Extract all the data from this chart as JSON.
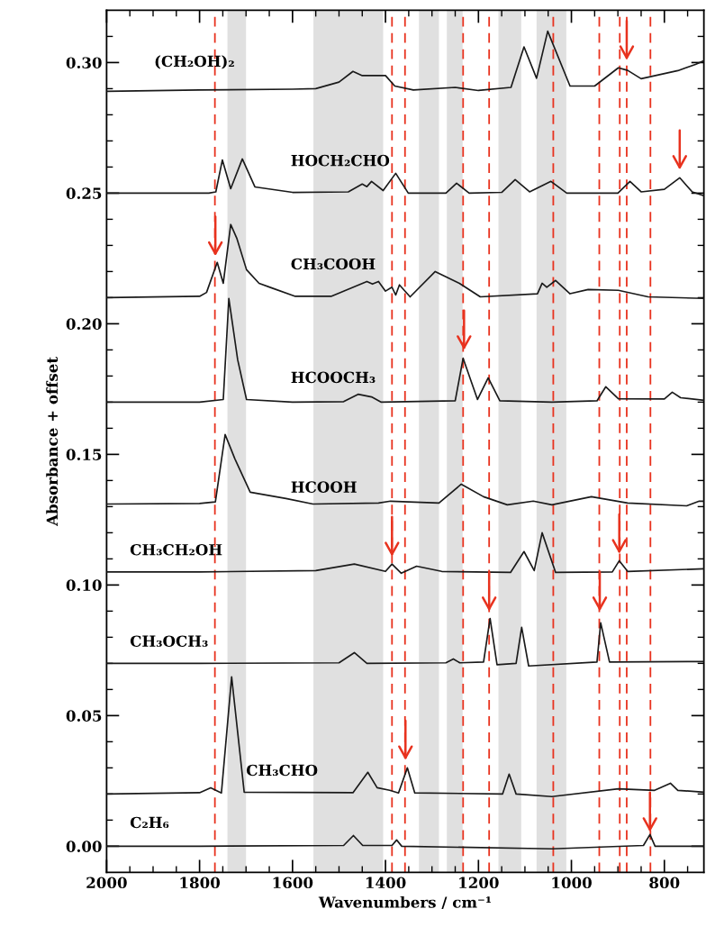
{
  "chart_data": {
    "type": "line",
    "xlabel": "Wavenumbers / cm⁻¹",
    "ylabel": "Absorbance + offset",
    "xlim": [
      2000,
      715
    ],
    "ylim": [
      -0.01,
      0.32
    ],
    "xticks": [
      2000,
      1800,
      1600,
      1400,
      1200,
      1000,
      800,
      {
        "value": 1950,
        "label": null
      },
      {
        "value": 1900,
        "label": null
      },
      {
        "value": 1850,
        "label": null
      },
      {
        "value": 1750,
        "label": null
      },
      {
        "value": 1700,
        "label": null
      },
      {
        "value": 1650,
        "label": null
      },
      {
        "value": 1550,
        "label": null
      },
      {
        "value": 1500,
        "label": null
      },
      {
        "value": 1450,
        "label": null
      },
      {
        "value": 1350,
        "label": null
      },
      {
        "value": 1300,
        "label": null
      },
      {
        "value": 1250,
        "label": null
      },
      {
        "value": 1150,
        "label": null
      },
      {
        "value": 1100,
        "label": null
      },
      {
        "value": 1050,
        "label": null
      },
      {
        "value": 950,
        "label": null
      },
      {
        "value": 900,
        "label": null
      },
      {
        "value": 850,
        "label": null
      },
      {
        "value": 750,
        "label": null
      }
    ],
    "yticks": [
      {
        "value": 0.0,
        "label": "0.00"
      },
      0.05,
      {
        "value": 0.1,
        "label": "0.10"
      },
      0.15,
      {
        "value": 0.2,
        "label": "0.20"
      },
      0.25,
      {
        "value": 0.3,
        "label": "0.30"
      },
      {
        "value": 0.01,
        "label": null
      },
      {
        "value": 0.02,
        "label": null
      },
      {
        "value": 0.03,
        "label": null
      },
      {
        "value": 0.04,
        "label": null
      },
      {
        "value": 0.06,
        "label": null
      },
      {
        "value": 0.07,
        "label": null
      },
      {
        "value": 0.08,
        "label": null
      },
      {
        "value": 0.09,
        "label": null
      },
      {
        "value": 0.11,
        "label": null
      },
      {
        "value": 0.12,
        "label": null
      },
      {
        "value": 0.13,
        "label": null
      },
      {
        "value": 0.14,
        "label": null
      },
      {
        "value": 0.16,
        "label": null
      },
      {
        "value": 0.17,
        "label": null
      },
      {
        "value": 0.18,
        "label": null
      },
      {
        "value": 0.19,
        "label": null
      },
      {
        "value": 0.21,
        "label": null
      },
      {
        "value": 0.22,
        "label": null
      },
      {
        "value": 0.23,
        "label": null
      },
      {
        "value": 0.24,
        "label": null
      },
      {
        "value": 0.26,
        "label": null
      },
      {
        "value": 0.27,
        "label": null
      },
      {
        "value": 0.28,
        "label": null
      },
      {
        "value": 0.29,
        "label": null
      },
      {
        "value": 0.31,
        "label": null
      }
    ],
    "grid": false,
    "legend": false,
    "marker": "none",
    "line_style": "solid",
    "bands": [
      {
        "axis": "x",
        "from": 1740,
        "to": 1700,
        "color": "#e0e0e0"
      },
      {
        "axis": "x",
        "from": 1555,
        "to": 1405,
        "color": "#e0e0e0"
      },
      {
        "axis": "x",
        "from": 1328,
        "to": 1285,
        "color": "#e0e0e0"
      },
      {
        "axis": "x",
        "from": 1268,
        "to": 1234,
        "color": "#e0e0e0"
      },
      {
        "axis": "x",
        "from": 1157,
        "to": 1108,
        "color": "#e0e0e0"
      },
      {
        "axis": "x",
        "from": 1075,
        "to": 1011,
        "color": "#e0e0e0"
      }
    ],
    "ref_lines": [
      {
        "axis": "x",
        "value": 1767,
        "color": "#e8321e",
        "line_style": "dashed"
      },
      {
        "axis": "x",
        "value": 1386,
        "color": "#e8321e",
        "line_style": "dashed"
      },
      {
        "axis": "x",
        "value": 1358,
        "color": "#e8321e",
        "line_style": "dashed"
      },
      {
        "axis": "x",
        "value": 1233,
        "color": "#e8321e",
        "line_style": "dashed"
      },
      {
        "axis": "x",
        "value": 1177,
        "color": "#e8321e",
        "line_style": "dashed"
      },
      {
        "axis": "x",
        "value": 1039,
        "color": "#e8321e",
        "line_style": "dashed"
      },
      {
        "axis": "x",
        "value": 940,
        "color": "#e8321e",
        "line_style": "dashed"
      },
      {
        "axis": "x",
        "value": 896,
        "color": "#e8321e",
        "line_style": "dashed"
      },
      {
        "axis": "x",
        "value": 881,
        "color": "#e8321e",
        "line_style": "dashed"
      },
      {
        "axis": "x",
        "value": 830,
        "color": "#e8321e",
        "line_style": "dashed"
      }
    ],
    "series": [
      {
        "name": "(CH₂OH)₂",
        "color": "#1a1a1a",
        "x": [
          2000,
          1800,
          1600,
          1550,
          1500,
          1470,
          1450,
          1400,
          1380,
          1340,
          1250,
          1200,
          1130,
          1102,
          1075,
          1051,
          1003,
          950,
          899,
          879,
          850,
          771,
          733,
          715
        ],
        "values": [
          0.289,
          0.2895,
          0.2898,
          0.29,
          0.2925,
          0.2966,
          0.295,
          0.295,
          0.291,
          0.2895,
          0.2905,
          0.2893,
          0.2905,
          0.306,
          0.294,
          0.312,
          0.291,
          0.291,
          0.298,
          0.297,
          0.2938,
          0.2969,
          0.2993,
          0.3007
        ]
      },
      {
        "name": "HOCH₂CHO",
        "color": "#1a1a1a",
        "x": [
          2000,
          1780,
          1765,
          1751,
          1733,
          1708,
          1681,
          1600,
          1480,
          1450,
          1440,
          1430,
          1405,
          1378,
          1351,
          1270,
          1247,
          1220,
          1150,
          1121,
          1090,
          1044,
          1010,
          900,
          874,
          850,
          800,
          767,
          740,
          715
        ],
        "values": [
          0.25,
          0.25,
          0.2505,
          0.2627,
          0.2517,
          0.2631,
          0.2524,
          0.2503,
          0.2505,
          0.2535,
          0.2525,
          0.2545,
          0.251,
          0.2576,
          0.25,
          0.25,
          0.2538,
          0.25,
          0.2503,
          0.2552,
          0.2505,
          0.2545,
          0.25,
          0.25,
          0.2545,
          0.2505,
          0.2515,
          0.2559,
          0.2505,
          0.249
        ]
      },
      {
        "name": "CH₃COOH",
        "color": "#1a1a1a",
        "x": [
          2000,
          1800,
          1785,
          1762,
          1749,
          1733,
          1720,
          1699,
          1672,
          1646,
          1594,
          1517,
          1440,
          1428,
          1415,
          1400,
          1386,
          1378,
          1370,
          1347,
          1293,
          1241,
          1196,
          1073,
          1063,
          1053,
          1034,
          1003,
          964,
          899,
          835,
          715
        ],
        "values": [
          0.21,
          0.2105,
          0.212,
          0.2235,
          0.2155,
          0.238,
          0.2328,
          0.2207,
          0.2155,
          0.2138,
          0.2105,
          0.2105,
          0.2162,
          0.2152,
          0.2162,
          0.2125,
          0.214,
          0.211,
          0.2149,
          0.2103,
          0.22,
          0.2155,
          0.2103,
          0.2115,
          0.2155,
          0.214,
          0.2166,
          0.2115,
          0.2131,
          0.2128,
          0.2103,
          0.2097
        ]
      },
      {
        "name": "HCOOCH₃",
        "color": "#1a1a1a",
        "x": [
          2000,
          1800,
          1749,
          1737,
          1718,
          1699,
          1600,
          1490,
          1459,
          1430,
          1409,
          1250,
          1233,
          1202,
          1179,
          1154,
          1042,
          945,
          926,
          899,
          800,
          783,
          765,
          715
        ],
        "values": [
          0.17,
          0.17,
          0.171,
          0.2097,
          0.1862,
          0.171,
          0.17,
          0.1702,
          0.173,
          0.172,
          0.17,
          0.1705,
          0.1868,
          0.171,
          0.1793,
          0.1705,
          0.17,
          0.1705,
          0.1759,
          0.1713,
          0.1712,
          0.1738,
          0.1717,
          0.1707
        ]
      },
      {
        "name": "HCOOH",
        "color": "#1a1a1a",
        "x": [
          2000,
          1800,
          1766,
          1745,
          1724,
          1691,
          1614,
          1556,
          1415,
          1389,
          1285,
          1237,
          1189,
          1138,
          1082,
          1042,
          957,
          879,
          752,
          725,
          715
        ],
        "values": [
          0.131,
          0.1312,
          0.1318,
          0.1576,
          0.1483,
          0.1355,
          0.1331,
          0.131,
          0.1314,
          0.1321,
          0.1314,
          0.1386,
          0.1338,
          0.1307,
          0.1321,
          0.1307,
          0.1338,
          0.1314,
          0.1303,
          0.1321,
          0.1321
        ]
      },
      {
        "name": "CH₃CH₂OH",
        "color": "#1a1a1a",
        "x": [
          2000,
          1800,
          1550,
          1467,
          1400,
          1386,
          1366,
          1333,
          1279,
          1131,
          1102,
          1080,
          1063,
          1034,
          912,
          897,
          879,
          715
        ],
        "values": [
          0.105,
          0.105,
          0.1055,
          0.108,
          0.1052,
          0.108,
          0.1045,
          0.1072,
          0.1052,
          0.1048,
          0.1128,
          0.1055,
          0.12,
          0.1048,
          0.105,
          0.1093,
          0.1052,
          0.1062
        ]
      },
      {
        "name": "CH₃OCH₃",
        "color": "#1a1a1a",
        "x": [
          2000,
          1800,
          1500,
          1467,
          1440,
          1270,
          1254,
          1240,
          1189,
          1175,
          1160,
          1119,
          1107,
          1092,
          945,
          937,
          918,
          715
        ],
        "values": [
          0.07,
          0.07,
          0.0702,
          0.0741,
          0.07,
          0.0702,
          0.0717,
          0.0702,
          0.0705,
          0.0872,
          0.0695,
          0.07,
          0.0838,
          0.069,
          0.0705,
          0.0855,
          0.0705,
          0.0707
        ]
      },
      {
        "name": "CH₃CHO",
        "color": "#1a1a1a",
        "x": [
          2000,
          1800,
          1776,
          1753,
          1731,
          1704,
          1470,
          1438,
          1418,
          1391,
          1372,
          1353,
          1337,
          1148,
          1134,
          1119,
          1042,
          899,
          821,
          787,
          771,
          715
        ],
        "values": [
          0.02,
          0.0205,
          0.0224,
          0.0204,
          0.0648,
          0.0207,
          0.0205,
          0.0283,
          0.0224,
          0.0214,
          0.0204,
          0.03,
          0.0204,
          0.02,
          0.0276,
          0.02,
          0.019,
          0.022,
          0.0214,
          0.0241,
          0.0214,
          0.0207
        ]
      },
      {
        "name": "C₂H₆",
        "color": "#1a1a1a",
        "x": [
          2000,
          1800,
          1490,
          1469,
          1449,
          1386,
          1376,
          1365,
          1042,
          845,
          831,
          820,
          715
        ],
        "values": [
          0.0,
          0.0,
          0.0003,
          0.0041,
          0.0003,
          0.0003,
          0.0024,
          0.0,
          -0.001,
          0.0003,
          0.0045,
          0.0,
          0.0
        ]
      }
    ]
  }
}
